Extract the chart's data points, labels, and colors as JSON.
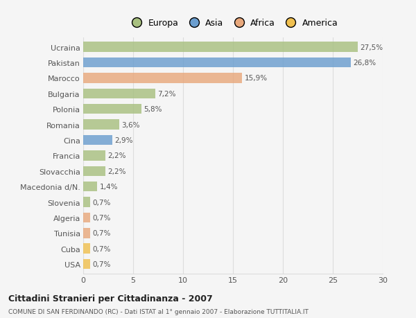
{
  "categories": [
    "Ucraina",
    "Pakistan",
    "Marocco",
    "Bulgaria",
    "Polonia",
    "Romania",
    "Cina",
    "Francia",
    "Slovacchia",
    "Macedonia d/N.",
    "Slovenia",
    "Algeria",
    "Tunisia",
    "Cuba",
    "USA"
  ],
  "values": [
    27.5,
    26.8,
    15.9,
    7.2,
    5.8,
    3.6,
    2.9,
    2.2,
    2.2,
    1.4,
    0.7,
    0.7,
    0.7,
    0.7,
    0.7
  ],
  "labels": [
    "27,5%",
    "26,8%",
    "15,9%",
    "7,2%",
    "5,8%",
    "3,6%",
    "2,9%",
    "2,2%",
    "2,2%",
    "1,4%",
    "0,7%",
    "0,7%",
    "0,7%",
    "0,7%",
    "0,7%"
  ],
  "colors": [
    "#a8c080",
    "#6b9ecf",
    "#e8a87c",
    "#a8c080",
    "#a8c080",
    "#a8c080",
    "#6b9ecf",
    "#a8c080",
    "#a8c080",
    "#a8c080",
    "#a8c080",
    "#e8a87c",
    "#e8a87c",
    "#f0c050",
    "#f0c050"
  ],
  "legend_labels": [
    "Europa",
    "Asia",
    "Africa",
    "America"
  ],
  "legend_colors": [
    "#a8c080",
    "#6b9ecf",
    "#e8a87c",
    "#f0c050"
  ],
  "title": "Cittadini Stranieri per Cittadinanza - 2007",
  "subtitle": "COMUNE DI SAN FERDINANDO (RC) - Dati ISTAT al 1° gennaio 2007 - Elaborazione TUTTITALIA.IT",
  "xlim": [
    0,
    30
  ],
  "xticks": [
    0,
    5,
    10,
    15,
    20,
    25,
    30
  ],
  "background_color": "#f5f5f5",
  "grid_color": "#dddddd",
  "bar_height": 0.65
}
